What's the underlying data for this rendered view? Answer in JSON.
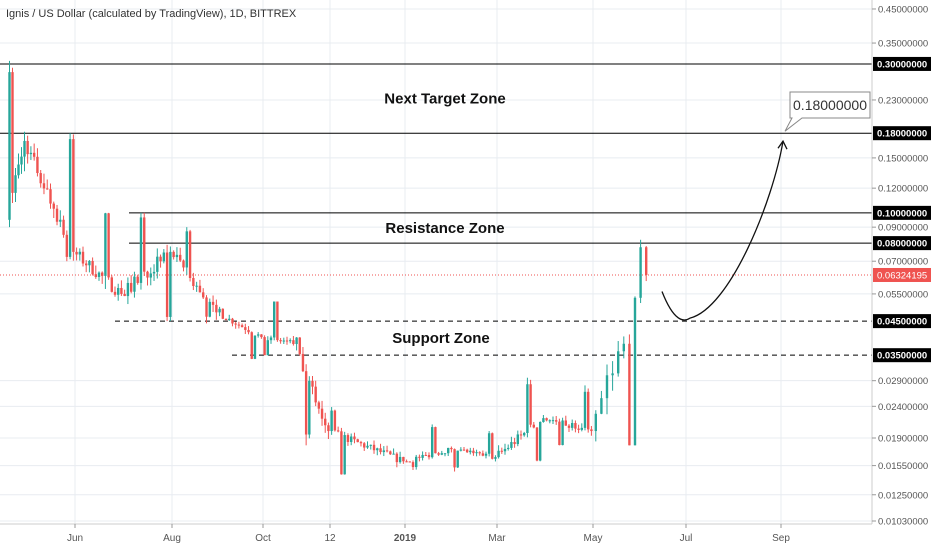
{
  "header": {
    "title": "Ignis / US Dollar (calculated by TradingView), 1D, BITTREX"
  },
  "chart_data": {
    "type": "candlestick",
    "title": "Ignis / US Dollar (calculated by TradingView), 1D, BITTREX",
    "y_scale": "log",
    "ylim": [
      0.0103,
      0.46
    ],
    "x_tick_labels": [
      "Jun",
      "Aug",
      "Oct",
      "12",
      "2019",
      "Mar",
      "May",
      "Jul",
      "Sep"
    ],
    "y_tick_labels": [
      {
        "value": 0.45,
        "label": "0.45000000"
      },
      {
        "value": 0.35,
        "label": "0.35000000"
      },
      {
        "value": 0.23,
        "label": "0.23000000"
      },
      {
        "value": 0.15,
        "label": "0.15000000"
      },
      {
        "value": 0.12,
        "label": "0.12000000"
      },
      {
        "value": 0.09,
        "label": "0.09000000"
      },
      {
        "value": 0.07,
        "label": "0.07000000"
      },
      {
        "value": 0.055,
        "label": "0.05500000"
      },
      {
        "value": 0.029,
        "label": "0.02900000"
      },
      {
        "value": 0.024,
        "label": "0.02400000"
      },
      {
        "value": 0.019,
        "label": "0.01900000"
      },
      {
        "value": 0.0155,
        "label": "0.01550000"
      },
      {
        "value": 0.0125,
        "label": "0.01250000"
      },
      {
        "value": 0.0103,
        "label": "0.01030000"
      }
    ],
    "price_levels": [
      {
        "value": 0.3,
        "label": "0.30000000",
        "style": "solid",
        "from_month": "2018-04"
      },
      {
        "value": 0.18,
        "label": "0.18000000",
        "style": "solid",
        "from_month": "2018-04"
      },
      {
        "value": 0.1,
        "label": "0.10000000",
        "style": "solid",
        "from_month": "2018-07"
      },
      {
        "value": 0.08,
        "label": "0.08000000",
        "style": "solid",
        "from_month": "2018-07"
      },
      {
        "value": 0.045,
        "label": "0.04500000",
        "style": "dashed",
        "from_month": "2018-07"
      },
      {
        "value": 0.035,
        "label": "0.03500000",
        "style": "dashed",
        "from_month": "2018-09"
      }
    ],
    "current_price": {
      "value": 0.06324195,
      "label": "0.06324195",
      "color": "#ef5350"
    },
    "zones": [
      {
        "label": "Next Target Zone",
        "lower": 0.18,
        "upper": 0.3
      },
      {
        "label": "Resistance Zone",
        "lower": 0.08,
        "upper": 0.1
      },
      {
        "label": "Support Zone",
        "lower": 0.035,
        "upper": 0.045
      }
    ],
    "projection": {
      "target_label": "0.18000000",
      "dip_low": 0.046,
      "target": 0.18,
      "dip_month": "2019-07",
      "target_month": "2019-09"
    },
    "monthly_candles": [
      {
        "month": "2018-04",
        "open": 0.095,
        "high": 0.31,
        "low": 0.09,
        "close": 0.17
      },
      {
        "month": "2018-05",
        "open": 0.17,
        "high": 0.18,
        "low": 0.07,
        "close": 0.075
      },
      {
        "month": "2018-06",
        "open": 0.075,
        "high": 0.1,
        "low": 0.045,
        "close": 0.055
      },
      {
        "month": "2018-07",
        "open": 0.055,
        "high": 0.1,
        "low": 0.045,
        "close": 0.075
      },
      {
        "month": "2018-08",
        "open": 0.075,
        "high": 0.09,
        "low": 0.044,
        "close": 0.048
      },
      {
        "month": "2018-09",
        "open": 0.048,
        "high": 0.05,
        "low": 0.034,
        "close": 0.04
      },
      {
        "month": "2018-10",
        "open": 0.04,
        "high": 0.052,
        "low": 0.035,
        "close": 0.038
      },
      {
        "month": "2018-11",
        "open": 0.038,
        "high": 0.04,
        "low": 0.018,
        "close": 0.02
      },
      {
        "month": "2018-12",
        "open": 0.02,
        "high": 0.024,
        "low": 0.0145,
        "close": 0.016
      },
      {
        "month": "2019-01",
        "open": 0.016,
        "high": 0.021,
        "low": 0.015,
        "close": 0.0175
      },
      {
        "month": "2019-02",
        "open": 0.0175,
        "high": 0.02,
        "low": 0.0148,
        "close": 0.0165
      },
      {
        "month": "2019-03",
        "open": 0.0165,
        "high": 0.03,
        "low": 0.016,
        "close": 0.022
      },
      {
        "month": "2019-04",
        "open": 0.022,
        "high": 0.028,
        "low": 0.018,
        "close": 0.02
      },
      {
        "month": "2019-05",
        "open": 0.02,
        "high": 0.082,
        "low": 0.018,
        "close": 0.06324195
      }
    ],
    "grid": true,
    "colors": {
      "up": "#26a69a",
      "down": "#ef5350",
      "grid": "#e8ecf1",
      "axis_text": "#555555",
      "level_line": "#000000"
    }
  }
}
